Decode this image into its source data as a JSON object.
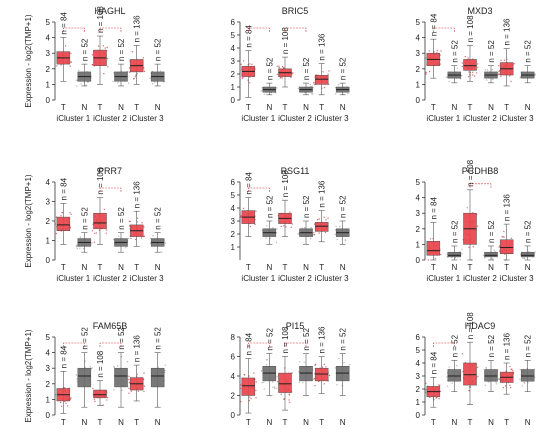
{
  "figure": {
    "y_axis_label": "Expression - log2(TMP+1)"
  },
  "colors": {
    "tumor": "#e8454b",
    "normal": "#6e6e6e",
    "tumor_point": "#c23a3f",
    "normal_point": "#9a9a9a",
    "axis": "#333333",
    "bracket": "#d33838"
  },
  "chart_data": [
    {
      "type": "box",
      "title": "HAGHL",
      "ylim": [
        0,
        5
      ],
      "yticks": [
        0,
        1,
        2,
        3,
        4,
        5
      ],
      "ylabel": "Expression - log2(TMP+1)",
      "clusters": [
        {
          "name": "iCluster 1",
          "groups": [
            {
              "label": "T",
              "n": "n = 84",
              "q1": 2.3,
              "median": 2.7,
              "q3": 3.1,
              "whisker_low": 1.2,
              "whisker_high": 4.0
            },
            {
              "label": "N",
              "n": "n = 52",
              "q1": 1.2,
              "median": 1.5,
              "q3": 1.8,
              "whisker_low": 0.9,
              "whisker_high": 2.3
            }
          ],
          "significant": true
        },
        {
          "name": "iCluster 2",
          "groups": [
            {
              "label": "T",
              "n": "n = 108",
              "q1": 2.2,
              "median": 2.7,
              "q3": 3.2,
              "whisker_low": 1.0,
              "whisker_high": 4.1
            },
            {
              "label": "N",
              "n": "n = 52",
              "q1": 1.2,
              "median": 1.5,
              "q3": 1.8,
              "whisker_low": 0.9,
              "whisker_high": 2.3
            }
          ],
          "significant": true
        },
        {
          "name": "iCluster 3",
          "groups": [
            {
              "label": "T",
              "n": "n = 136",
              "q1": 1.8,
              "median": 2.2,
              "q3": 2.6,
              "whisker_low": 1.0,
              "whisker_high": 3.5
            },
            {
              "label": "N",
              "n": "n = 52",
              "q1": 1.2,
              "median": 1.5,
              "q3": 1.8,
              "whisker_low": 0.9,
              "whisker_high": 2.3
            }
          ],
          "significant": false
        }
      ]
    },
    {
      "type": "box",
      "title": "BRIC5",
      "ylim": [
        0,
        6
      ],
      "yticks": [
        0,
        1,
        2,
        3,
        4,
        5,
        6
      ],
      "ylabel": "",
      "clusters": [
        {
          "name": "iCluster 1",
          "groups": [
            {
              "label": "T",
              "n": "n = 84",
              "q1": 1.8,
              "median": 2.2,
              "q3": 2.6,
              "whisker_low": 0.2,
              "whisker_high": 3.8
            },
            {
              "label": "N",
              "n": "n = 52",
              "q1": 0.6,
              "median": 0.8,
              "q3": 1.0,
              "whisker_low": 0.4,
              "whisker_high": 1.3
            }
          ],
          "significant": true
        },
        {
          "name": "iCluster 2",
          "groups": [
            {
              "label": "T",
              "n": "n = 108",
              "q1": 1.8,
              "median": 2.1,
              "q3": 2.4,
              "whisker_low": 1.0,
              "whisker_high": 3.3
            },
            {
              "label": "N",
              "n": "n = 52",
              "q1": 0.6,
              "median": 0.8,
              "q3": 1.0,
              "whisker_low": 0.4,
              "whisker_high": 1.3
            }
          ],
          "significant": true
        },
        {
          "name": "iCluster 3",
          "groups": [
            {
              "label": "T",
              "n": "n = 136",
              "q1": 1.2,
              "median": 1.6,
              "q3": 1.9,
              "whisker_low": 0.4,
              "whisker_high": 2.8
            },
            {
              "label": "N",
              "n": "n = 52",
              "q1": 0.6,
              "median": 0.8,
              "q3": 1.0,
              "whisker_low": 0.4,
              "whisker_high": 1.3
            }
          ],
          "significant": false
        }
      ]
    },
    {
      "type": "box",
      "title": "MXD3",
      "ylim": [
        0,
        5
      ],
      "yticks": [
        0,
        1,
        2,
        3,
        4,
        5
      ],
      "ylabel": "",
      "clusters": [
        {
          "name": "iCluster 1",
          "groups": [
            {
              "label": "T",
              "n": "n = 84",
              "q1": 2.2,
              "median": 2.6,
              "q3": 3.0,
              "whisker_low": 1.4,
              "whisker_high": 3.9
            },
            {
              "label": "N",
              "n": "n = 52",
              "q1": 1.4,
              "median": 1.6,
              "q3": 1.8,
              "whisker_low": 1.1,
              "whisker_high": 2.2
            }
          ],
          "significant": true
        },
        {
          "name": "iCluster 2",
          "groups": [
            {
              "label": "T",
              "n": "n = 108",
              "q1": 1.9,
              "median": 2.2,
              "q3": 2.6,
              "whisker_low": 1.2,
              "whisker_high": 3.5
            },
            {
              "label": "N",
              "n": "n = 52",
              "q1": 1.4,
              "median": 1.6,
              "q3": 1.8,
              "whisker_low": 1.1,
              "whisker_high": 2.2
            }
          ],
          "significant": false
        },
        {
          "name": "iCluster 3",
          "groups": [
            {
              "label": "T",
              "n": "n = 136",
              "q1": 1.6,
              "median": 2.0,
              "q3": 2.4,
              "whisker_low": 0.9,
              "whisker_high": 3.3
            },
            {
              "label": "N",
              "n": "n = 52",
              "q1": 1.4,
              "median": 1.6,
              "q3": 1.8,
              "whisker_low": 1.1,
              "whisker_high": 2.2
            }
          ],
          "significant": false
        }
      ]
    },
    {
      "type": "box",
      "title": "PRR7",
      "ylim": [
        0,
        4
      ],
      "yticks": [
        0,
        1,
        2,
        3,
        4
      ],
      "ylabel": "Expression - log2(TMP+1)",
      "clusters": [
        {
          "name": "iCluster 1",
          "groups": [
            {
              "label": "T",
              "n": "n = 84",
              "q1": 1.5,
              "median": 1.8,
              "q3": 2.2,
              "whisker_low": 0.8,
              "whisker_high": 2.9
            },
            {
              "label": "N",
              "n": "n = 52",
              "q1": 0.7,
              "median": 0.9,
              "q3": 1.1,
              "whisker_low": 0.4,
              "whisker_high": 1.4
            }
          ],
          "significant": false
        },
        {
          "name": "iCluster 2",
          "groups": [
            {
              "label": "T",
              "n": "n = 108",
              "q1": 1.6,
              "median": 1.9,
              "q3": 2.4,
              "whisker_low": 0.8,
              "whisker_high": 3.2
            },
            {
              "label": "N",
              "n": "n = 52",
              "q1": 0.7,
              "median": 0.9,
              "q3": 1.1,
              "whisker_low": 0.4,
              "whisker_high": 1.4
            }
          ],
          "significant": true
        },
        {
          "name": "iCluster 3",
          "groups": [
            {
              "label": "T",
              "n": "n = 136",
              "q1": 1.2,
              "median": 1.5,
              "q3": 1.8,
              "whisker_low": 0.7,
              "whisker_high": 2.5
            },
            {
              "label": "N",
              "n": "n = 52",
              "q1": 0.7,
              "median": 0.9,
              "q3": 1.1,
              "whisker_low": 0.4,
              "whisker_high": 1.4
            }
          ],
          "significant": false
        }
      ]
    },
    {
      "type": "box",
      "title": "RSG11",
      "ylim": [
        0,
        6
      ],
      "yticks": [
        1,
        2,
        3,
        4,
        5,
        6
      ],
      "ylabel": "",
      "clusters": [
        {
          "name": "iCluster 1",
          "groups": [
            {
              "label": "T",
              "n": "n = 84",
              "q1": 2.8,
              "median": 3.3,
              "q3": 3.8,
              "whisker_low": 1.8,
              "whisker_high": 4.8
            },
            {
              "label": "N",
              "n": "n = 52",
              "q1": 1.8,
              "median": 2.1,
              "q3": 2.4,
              "whisker_low": 1.2,
              "whisker_high": 3.0
            }
          ],
          "significant": true
        },
        {
          "name": "iCluster 2",
          "groups": [
            {
              "label": "T",
              "n": "n = 108",
              "q1": 2.8,
              "median": 3.2,
              "q3": 3.6,
              "whisker_low": 1.8,
              "whisker_high": 4.6
            },
            {
              "label": "N",
              "n": "n = 52",
              "q1": 1.8,
              "median": 2.1,
              "q3": 2.4,
              "whisker_low": 1.2,
              "whisker_high": 3.0
            }
          ],
          "significant": false
        },
        {
          "name": "iCluster 3",
          "groups": [
            {
              "label": "T",
              "n": "n = 136",
              "q1": 2.2,
              "median": 2.6,
              "q3": 2.9,
              "whisker_low": 1.4,
              "whisker_high": 3.8
            },
            {
              "label": "N",
              "n": "n = 52",
              "q1": 1.8,
              "median": 2.1,
              "q3": 2.4,
              "whisker_low": 1.2,
              "whisker_high": 3.0
            }
          ],
          "significant": false
        }
      ]
    },
    {
      "type": "box",
      "title": "PCDHB8",
      "ylim": [
        0,
        5
      ],
      "yticks": [
        0,
        1,
        2,
        3,
        4,
        5
      ],
      "ylabel": "",
      "clusters": [
        {
          "name": "iCluster 1",
          "groups": [
            {
              "label": "T",
              "n": "n = 84",
              "q1": 0.3,
              "median": 0.6,
              "q3": 1.2,
              "whisker_low": 0.0,
              "whisker_high": 2.4
            },
            {
              "label": "N",
              "n": "n = 52",
              "q1": 0.2,
              "median": 0.3,
              "q3": 0.5,
              "whisker_low": 0.0,
              "whisker_high": 0.9
            }
          ],
          "significant": false
        },
        {
          "name": "iCluster 2",
          "groups": [
            {
              "label": "T",
              "n": "n = 108",
              "q1": 1.0,
              "median": 2.0,
              "q3": 3.0,
              "whisker_low": 0.0,
              "whisker_high": 4.5
            },
            {
              "label": "N",
              "n": "n = 52",
              "q1": 0.2,
              "median": 0.3,
              "q3": 0.5,
              "whisker_low": 0.0,
              "whisker_high": 0.9
            }
          ],
          "significant": true
        },
        {
          "name": "iCluster 3",
          "groups": [
            {
              "label": "T",
              "n": "n = 136",
              "q1": 0.4,
              "median": 0.8,
              "q3": 1.3,
              "whisker_low": 0.0,
              "whisker_high": 2.3
            },
            {
              "label": "N",
              "n": "n = 52",
              "q1": 0.2,
              "median": 0.3,
              "q3": 0.5,
              "whisker_low": 0.0,
              "whisker_high": 0.9
            }
          ],
          "significant": false
        }
      ]
    },
    {
      "type": "box",
      "title": "FAM65B",
      "ylim": [
        0,
        5
      ],
      "yticks": [
        0,
        1,
        2,
        3,
        4,
        5
      ],
      "ylabel": "Expression - log2(TMP+1)",
      "clusters": [
        {
          "name": "iCluster 1",
          "groups": [
            {
              "label": "T",
              "n": "n = 84",
              "q1": 0.9,
              "median": 1.3,
              "q3": 1.7,
              "whisker_low": 0.1,
              "whisker_high": 2.8
            },
            {
              "label": "N",
              "n": "n = 52",
              "q1": 1.8,
              "median": 2.5,
              "q3": 3.0,
              "whisker_low": 0.5,
              "whisker_high": 4.0
            }
          ],
          "significant": true
        },
        {
          "name": "iCluster 2",
          "groups": [
            {
              "label": "T",
              "n": "n = 108",
              "q1": 1.1,
              "median": 1.3,
              "q3": 1.6,
              "whisker_low": 0.6,
              "whisker_high": 2.2
            },
            {
              "label": "N",
              "n": "n = 52",
              "q1": 1.8,
              "median": 2.5,
              "q3": 3.0,
              "whisker_low": 0.5,
              "whisker_high": 4.0
            }
          ],
          "significant": true
        },
        {
          "name": "iCluster 3",
          "groups": [
            {
              "label": "T",
              "n": "n = 136",
              "q1": 1.6,
              "median": 2.0,
              "q3": 2.4,
              "whisker_low": 0.9,
              "whisker_high": 3.2
            },
            {
              "label": "N",
              "n": "n = 52",
              "q1": 1.8,
              "median": 2.5,
              "q3": 3.0,
              "whisker_low": 0.5,
              "whisker_high": 4.0
            }
          ],
          "significant": false
        }
      ]
    },
    {
      "type": "box",
      "title": "PI15",
      "ylim": [
        0,
        8
      ],
      "yticks": [
        0,
        2,
        4,
        6,
        8
      ],
      "ylabel": "",
      "clusters": [
        {
          "name": "iCluster 1",
          "groups": [
            {
              "label": "T",
              "n": "n = 84",
              "q1": 2.0,
              "median": 3.0,
              "q3": 3.8,
              "whisker_low": 0.2,
              "whisker_high": 5.8
            },
            {
              "label": "N",
              "n": "n = 52",
              "q1": 3.5,
              "median": 4.3,
              "q3": 5.0,
              "whisker_low": 2.0,
              "whisker_high": 6.3
            }
          ],
          "significant": true
        },
        {
          "name": "iCluster 2",
          "groups": [
            {
              "label": "T",
              "n": "n = 108",
              "q1": 2.3,
              "median": 3.2,
              "q3": 4.3,
              "whisker_low": 0.5,
              "whisker_high": 6.0
            },
            {
              "label": "N",
              "n": "n = 52",
              "q1": 3.5,
              "median": 4.3,
              "q3": 5.0,
              "whisker_low": 2.0,
              "whisker_high": 6.3
            }
          ],
          "significant": true
        },
        {
          "name": "iCluster 3",
          "groups": [
            {
              "label": "T",
              "n": "n = 136",
              "q1": 3.5,
              "median": 4.2,
              "q3": 4.8,
              "whisker_low": 2.2,
              "whisker_high": 6.0
            },
            {
              "label": "N",
              "n": "n = 52",
              "q1": 3.5,
              "median": 4.3,
              "q3": 5.0,
              "whisker_low": 2.0,
              "whisker_high": 6.3
            }
          ],
          "significant": false
        }
      ]
    },
    {
      "type": "box",
      "title": "HDAC9",
      "ylim": [
        0,
        6
      ],
      "yticks": [
        0,
        1,
        2,
        3,
        4,
        5,
        6
      ],
      "ylabel": "",
      "clusters": [
        {
          "name": "iCluster 1",
          "groups": [
            {
              "label": "T",
              "n": "n = 84",
              "q1": 1.4,
              "median": 1.8,
              "q3": 2.2,
              "whisker_low": 0.6,
              "whisker_high": 2.9
            },
            {
              "label": "N",
              "n": "n = 52",
              "q1": 2.6,
              "median": 3.0,
              "q3": 3.5,
              "whisker_low": 1.8,
              "whisker_high": 4.2
            }
          ],
          "significant": true
        },
        {
          "name": "iCluster 2",
          "groups": [
            {
              "label": "T",
              "n": "n = 108",
              "q1": 2.3,
              "median": 3.1,
              "q3": 4.0,
              "whisker_low": 0.8,
              "whisker_high": 5.6
            },
            {
              "label": "N",
              "n": "n = 52",
              "q1": 2.6,
              "median": 3.0,
              "q3": 3.5,
              "whisker_low": 1.8,
              "whisker_high": 4.2
            }
          ],
          "significant": false
        },
        {
          "name": "iCluster 3",
          "groups": [
            {
              "label": "T",
              "n": "n = 136",
              "q1": 2.5,
              "median": 2.9,
              "q3": 3.3,
              "whisker_low": 1.6,
              "whisker_high": 4.0
            },
            {
              "label": "N",
              "n": "n = 52",
              "q1": 2.6,
              "median": 3.0,
              "q3": 3.5,
              "whisker_low": 1.8,
              "whisker_high": 4.2
            }
          ],
          "significant": false
        }
      ]
    }
  ]
}
